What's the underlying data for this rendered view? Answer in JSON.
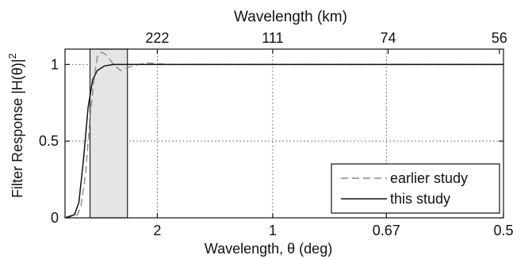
{
  "chart_data": {
    "type": "line",
    "xlabel": "Wavelength, θ (deg)",
    "xlabel_top": "Wavelength (km)",
    "ylabel": "Filter Response |H(θ)|²",
    "x_scale": "reciprocal",
    "xlim_wavenumber": [
      0.1,
      2.0
    ],
    "ylim": [
      0,
      1.1
    ],
    "bottom_ticks": [
      {
        "label": "2",
        "wavelength_deg": 2
      },
      {
        "label": "1",
        "wavelength_deg": 1
      },
      {
        "label": "0.67",
        "wavelength_deg": 0.67
      },
      {
        "label": "0.5",
        "wavelength_deg": 0.5
      }
    ],
    "top_ticks": [
      {
        "label": "222",
        "wavelength_km": 222
      },
      {
        "label": "111",
        "wavelength_km": 111
      },
      {
        "label": "74",
        "wavelength_km": 74
      },
      {
        "label": "56",
        "wavelength_km": 56
      }
    ],
    "y_ticks": [
      {
        "label": "0",
        "value": 0
      },
      {
        "label": "0.5",
        "value": 0.5
      },
      {
        "label": "1",
        "value": 1
      }
    ],
    "shaded_band_wavelength_deg": [
      4.8,
      2.7
    ],
    "grid": "dotted",
    "legend_position": "bottom-right",
    "series": [
      {
        "name": "earlier study",
        "style": "dashed",
        "color": "#888888",
        "points": [
          [
            10,
            0.0
          ],
          [
            6.5,
            0.02
          ],
          [
            5.9,
            0.08
          ],
          [
            5.3,
            0.28
          ],
          [
            4.8,
            0.65
          ],
          [
            4.4,
            0.92
          ],
          [
            4.17,
            1.05
          ],
          [
            3.85,
            1.08
          ],
          [
            3.57,
            1.06
          ],
          [
            3.23,
            1.0
          ],
          [
            2.94,
            0.96
          ],
          [
            2.56,
            0.99
          ],
          [
            2.22,
            1.01
          ],
          [
            1.82,
            1.0
          ],
          [
            1.43,
            1.0
          ],
          [
            1.0,
            1.0
          ],
          [
            0.77,
            1.0
          ],
          [
            0.63,
            1.0
          ],
          [
            0.5,
            1.0
          ]
        ]
      },
      {
        "name": "this study",
        "style": "solid",
        "color": "#111111",
        "points": [
          [
            10,
            0.0
          ],
          [
            7.1,
            0.02
          ],
          [
            6.25,
            0.1
          ],
          [
            5.55,
            0.38
          ],
          [
            5.0,
            0.72
          ],
          [
            4.55,
            0.9
          ],
          [
            4.17,
            0.96
          ],
          [
            3.7,
            0.99
          ],
          [
            3.23,
            1.0
          ],
          [
            1.0,
            1.0
          ],
          [
            0.5,
            1.0
          ]
        ]
      }
    ]
  }
}
